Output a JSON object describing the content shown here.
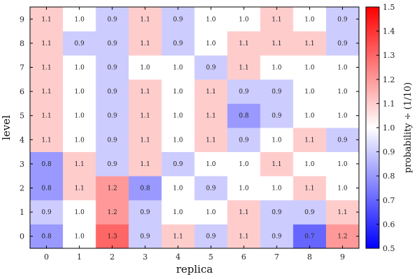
{
  "chart_data": {
    "type": "heatmap",
    "xlabel": "replica",
    "ylabel": "level",
    "x_ticks": [
      "0",
      "1",
      "2",
      "3",
      "4",
      "5",
      "6",
      "7",
      "8",
      "9"
    ],
    "y_ticks": [
      "0",
      "1",
      "2",
      "3",
      "4",
      "5",
      "6",
      "7",
      "8",
      "9"
    ],
    "colorbar": {
      "label": "probability ÷ (1/10)",
      "range": [
        0.5,
        1.5
      ],
      "ticks": [
        "0.5",
        "0.6",
        "0.7",
        "0.8",
        "0.9",
        "1.0",
        "1.1",
        "1.2",
        "1.3",
        "1.4",
        "1.5"
      ],
      "colors": {
        "low": "#0000ff",
        "mid": "#ffffff",
        "high": "#ff0000"
      }
    },
    "values": [
      [
        0.8,
        1.0,
        1.3,
        0.9,
        1.1,
        0.9,
        1.1,
        0.9,
        0.7,
        1.2
      ],
      [
        0.9,
        1.0,
        1.2,
        0.9,
        1.0,
        1.0,
        1.1,
        0.9,
        0.9,
        1.1
      ],
      [
        0.8,
        1.1,
        1.2,
        0.8,
        1.0,
        0.9,
        1.0,
        1.0,
        1.1,
        1.0
      ],
      [
        0.8,
        1.1,
        0.9,
        1.1,
        0.9,
        1.0,
        1.0,
        1.1,
        1.0,
        1.0
      ],
      [
        1.1,
        1.0,
        0.9,
        1.1,
        1.0,
        1.1,
        0.9,
        1.0,
        1.1,
        0.9
      ],
      [
        1.1,
        1.0,
        0.9,
        1.1,
        1.0,
        1.1,
        0.8,
        0.9,
        1.0,
        1.0
      ],
      [
        1.1,
        1.0,
        0.9,
        1.1,
        1.0,
        1.1,
        0.9,
        0.9,
        1.0,
        1.0
      ],
      [
        1.1,
        1.0,
        0.9,
        1.0,
        1.0,
        0.9,
        1.1,
        1.0,
        1.0,
        1.0
      ],
      [
        1.1,
        0.9,
        0.9,
        1.1,
        0.9,
        1.0,
        1.1,
        1.1,
        1.1,
        0.9
      ],
      [
        1.1,
        1.0,
        0.9,
        1.1,
        0.9,
        1.0,
        1.0,
        1.1,
        1.0,
        0.9
      ]
    ]
  }
}
